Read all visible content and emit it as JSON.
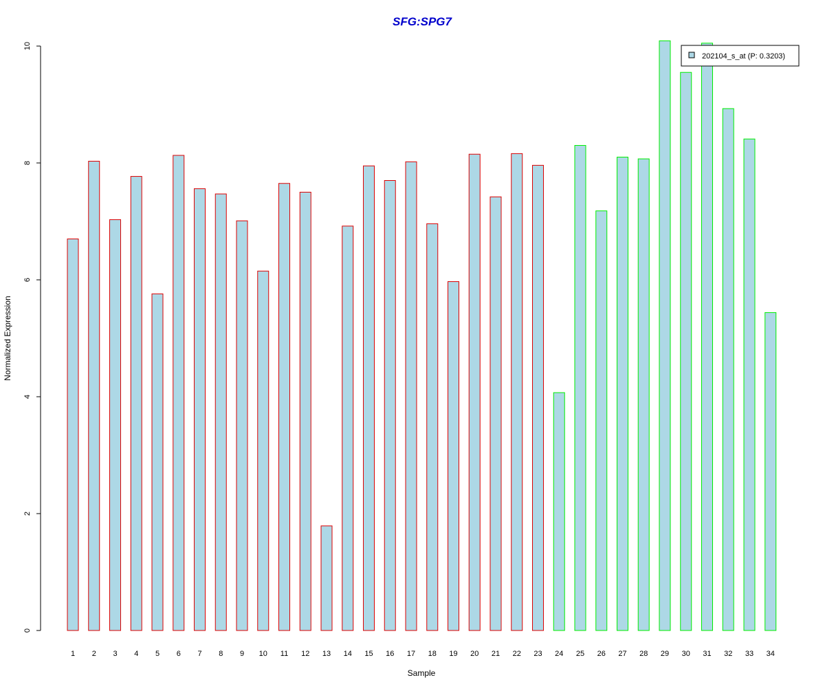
{
  "chart_data": {
    "type": "bar",
    "title": "SFG:SPG7",
    "xlabel": "Sample",
    "ylabel": "Normalized Expression",
    "ylim": [
      0,
      10
    ],
    "yticks": [
      "0",
      "2",
      "4",
      "6",
      "8",
      "10"
    ],
    "categories": [
      "1",
      "2",
      "3",
      "4",
      "5",
      "6",
      "7",
      "8",
      "9",
      "10",
      "11",
      "12",
      "13",
      "14",
      "15",
      "16",
      "17",
      "18",
      "19",
      "20",
      "21",
      "22",
      "23",
      "24",
      "25",
      "26",
      "27",
      "28",
      "29",
      "30",
      "31",
      "32",
      "33",
      "34"
    ],
    "series": [
      {
        "name": "202104_s_at (P: 0.3203)",
        "values": [
          6.7,
          8.03,
          7.03,
          7.77,
          5.76,
          8.13,
          7.56,
          7.47,
          7.01,
          6.15,
          7.65,
          7.5,
          1.79,
          6.92,
          7.95,
          7.7,
          8.02,
          6.96,
          5.97,
          8.15,
          7.42,
          8.16,
          7.96,
          4.07,
          8.3,
          7.18,
          8.1,
          8.07,
          10.09,
          9.55,
          10.05,
          8.93,
          8.41,
          5.44
        ]
      }
    ],
    "bar_groups": [
      "red",
      "red",
      "red",
      "red",
      "red",
      "red",
      "red",
      "red",
      "red",
      "red",
      "red",
      "red",
      "red",
      "red",
      "red",
      "red",
      "red",
      "red",
      "red",
      "red",
      "red",
      "red",
      "red",
      "green",
      "green",
      "green",
      "green",
      "green",
      "green",
      "green",
      "green",
      "green",
      "green",
      "green"
    ],
    "grid": false,
    "legend_position": "top-right",
    "colors": {
      "bar_fill": "#add8e6",
      "group_red": "#dd0000",
      "group_green": "#00ee00",
      "title": "#0000cc"
    }
  }
}
